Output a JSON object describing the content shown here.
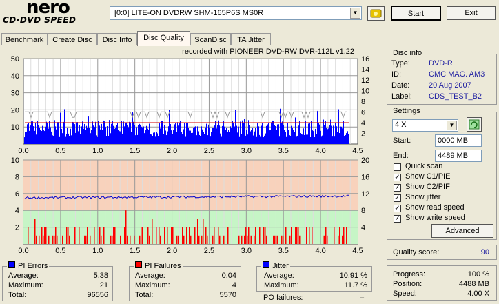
{
  "logo": {
    "line1": "nero",
    "line2": "CD·DVD SPEED"
  },
  "drive_select": {
    "value": "[0:0]   LITE-ON DVDRW SHM-165P6S MS0R"
  },
  "buttons": {
    "start": "Start",
    "exit": "Exit",
    "advanced": "Advanced"
  },
  "tabs": [
    "Benchmark",
    "Create Disc",
    "Disc Info",
    "Disc Quality",
    "ScanDisc",
    "TA Jitter"
  ],
  "recorded_with": "recorded with PIONEER DVD-RW  DVR-112L v1.22",
  "chart1": {
    "left_ticks": [
      "50",
      "40",
      "30",
      "20",
      "10"
    ],
    "right_ticks": [
      "16",
      "14",
      "12",
      "10",
      "8",
      "6",
      "4",
      "2"
    ],
    "x_ticks": [
      "0.0",
      "0.5",
      "1.0",
      "1.5",
      "2.0",
      "2.5",
      "3.0",
      "3.5",
      "4.0",
      "4.5"
    ]
  },
  "chart2": {
    "left_ticks": [
      "10",
      "8",
      "6",
      "4",
      "2"
    ],
    "right_ticks": [
      "20",
      "16",
      "12",
      "8",
      "4"
    ],
    "x_ticks": [
      "0.0",
      "0.5",
      "1.0",
      "1.5",
      "2.0",
      "2.5",
      "3.0",
      "3.5",
      "4.0",
      "4.5"
    ]
  },
  "chart_data": [
    {
      "type": "bar",
      "title": "PI Errors",
      "xlim": [
        0,
        4.5
      ],
      "ylim": [
        0,
        50
      ],
      "y2lim": [
        0,
        16
      ],
      "data_extent_gb": 4.38,
      "pi_typical_range": [
        4,
        14
      ],
      "pi_max": 21,
      "read_speed_level_right_axis": 4,
      "colors": {
        "pi": "#0000ff",
        "read": "#d00000",
        "jitter_line": "#9a9a9a"
      }
    },
    {
      "type": "bar",
      "title": "PI Failures",
      "xlim": [
        0,
        4.5
      ],
      "ylim": [
        0,
        10
      ],
      "y2lim": [
        0,
        20
      ],
      "data_extent_gb": 4.38,
      "pif_max": 4,
      "jitter_level_right_axis": 11,
      "colors": {
        "pif": "#ff0000",
        "jitter": "#0000cc",
        "upper_band": "#f8d2bc",
        "lower_band": "#c6f5c6"
      }
    }
  ],
  "disc_info": {
    "title": "Disc info",
    "rows": [
      {
        "label": "Type:",
        "value": "DVD-R"
      },
      {
        "label": "ID:",
        "value": "CMC MAG. AM3"
      },
      {
        "label": "Date:",
        "value": "20 Aug 2007"
      },
      {
        "label": "Label:",
        "value": "CDS_TEST_B2"
      }
    ]
  },
  "settings": {
    "title": "Settings",
    "speed": "4 X",
    "start_label": "Start:",
    "start_value": "0000 MB",
    "end_label": "End:",
    "end_value": "4489 MB",
    "checks": [
      {
        "label": "Quick scan",
        "checked": false
      },
      {
        "label": "Show C1/PIE",
        "checked": true
      },
      {
        "label": "Show C2/PIF",
        "checked": true
      },
      {
        "label": "Show jitter",
        "checked": true
      },
      {
        "label": "Show read speed",
        "checked": true
      },
      {
        "label": "Show write speed",
        "checked": true
      }
    ]
  },
  "quality": {
    "label": "Quality score:",
    "value": "90"
  },
  "progress": {
    "rows": [
      {
        "label": "Progress:",
        "value": "100 %"
      },
      {
        "label": "Position:",
        "value": "4488 MB"
      },
      {
        "label": "Speed:",
        "value": "4.00 X"
      }
    ]
  },
  "pi_errors": {
    "title": "PI Errors",
    "rows": [
      {
        "label": "Average:",
        "value": "5.38"
      },
      {
        "label": "Maximum:",
        "value": "21"
      },
      {
        "label": "Total:",
        "value": "96556"
      }
    ]
  },
  "pi_failures": {
    "title": "PI Failures",
    "rows": [
      {
        "label": "Average:",
        "value": "0.04"
      },
      {
        "label": "Maximum:",
        "value": "4"
      },
      {
        "label": "Total:",
        "value": "5570"
      }
    ]
  },
  "jitter": {
    "title": "Jitter",
    "rows": [
      {
        "label": "Average:",
        "value": "10.91 %"
      },
      {
        "label": "Maximum:",
        "value": "11.7 %"
      }
    ]
  },
  "po_failures": {
    "label": "PO failures:",
    "value": "–"
  }
}
